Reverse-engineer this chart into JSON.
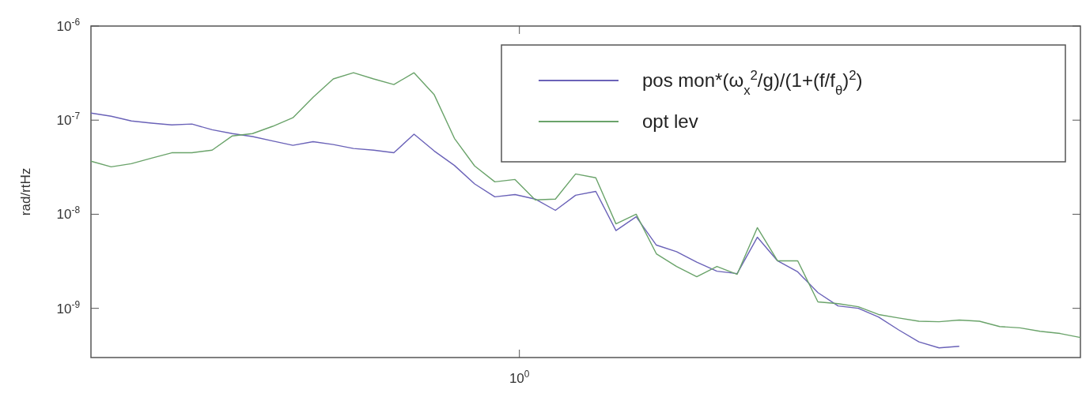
{
  "chart_data": {
    "type": "line",
    "ylabel": "rad/rtHz",
    "log": "y",
    "grid": false,
    "legend": "top right",
    "line_style": "solid",
    "marker": "none",
    "categories": [
      null,
      null,
      null,
      null,
      null,
      null,
      null,
      null,
      null,
      null,
      null,
      null,
      null,
      null,
      null,
      null,
      null,
      null,
      null,
      null,
      null,
      null,
      null,
      null,
      null,
      null,
      null,
      null,
      null,
      null,
      null,
      null,
      null,
      null,
      null,
      null,
      null,
      null,
      null,
      null,
      null,
      null,
      null,
      null,
      null,
      null,
      null,
      null,
      null,
      null
    ],
    "annotations": [
      "10$^{0}$"
    ],
    "ylim": [
      3e-10,
      1e-06
    ],
    "yticks": [
      {
        "value": 1e-06,
        "label": "10$^{-6}$"
      },
      {
        "value": 1e-07,
        "label": "10$^{-7}$"
      },
      {
        "value": 1e-08,
        "label": "10$^{-8}$"
      },
      {
        "value": 1e-09,
        "label": "10$^{-9}$"
      }
    ],
    "series": [
      {
        "name": "pos mon*(ω$_{x}$$^{2}$/g)/(1+(f/f$_{θ}$)$^{2}$)",
        "color": "#6a62b8",
        "values": [
          1.19e-07,
          1.1e-07,
          9.8e-08,
          9.3e-08,
          8.9e-08,
          9.1e-08,
          7.9e-08,
          7.2e-08,
          6.7e-08,
          6e-08,
          5.4e-08,
          5.9e-08,
          5.5e-08,
          5e-08,
          4.8e-08,
          4.5e-08,
          7.1e-08,
          4.7e-08,
          3.3e-08,
          2.1e-08,
          1.53e-08,
          1.62e-08,
          1.45e-08,
          1.1e-08,
          1.59e-08,
          1.75e-08,
          6.7e-09,
          9.4e-09,
          4.7e-09,
          4e-09,
          3.1e-09,
          2.48e-09,
          2.34e-09,
          5.7e-09,
          3.2e-09,
          2.44e-09,
          1.47e-09,
          1.06e-09,
          1e-09,
          8.1e-10,
          5.9e-10,
          4.4e-10,
          3.8e-10,
          3.95e-10,
          null,
          null,
          null,
          null,
          null,
          null
        ]
      },
      {
        "name": "opt lev",
        "color": "#6aa36a",
        "values": [
          3.66e-08,
          3.19e-08,
          3.45e-08,
          3.95e-08,
          4.5e-08,
          4.5e-08,
          4.8e-08,
          6.8e-08,
          7.2e-08,
          8.6e-08,
          1.06e-07,
          1.75e-07,
          2.74e-07,
          3.19e-07,
          2.74e-07,
          2.39e-07,
          3.19e-07,
          1.86e-07,
          6.4e-08,
          3.26e-08,
          2.21e-08,
          2.34e-08,
          1.42e-08,
          1.45e-08,
          2.68e-08,
          2.44e-08,
          7.9e-09,
          1e-08,
          3.8e-09,
          2.79e-09,
          2.17e-09,
          2.79e-09,
          2.3e-09,
          7.2e-09,
          3.2e-09,
          3.2e-09,
          1.17e-09,
          1.12e-09,
          1.04e-09,
          8.6e-10,
          7.9e-10,
          7.3e-10,
          7.2e-10,
          7.5e-10,
          7.3e-10,
          6.4e-10,
          6.2e-10,
          5.7e-10,
          5.4e-10,
          4.9e-10
        ]
      }
    ]
  }
}
